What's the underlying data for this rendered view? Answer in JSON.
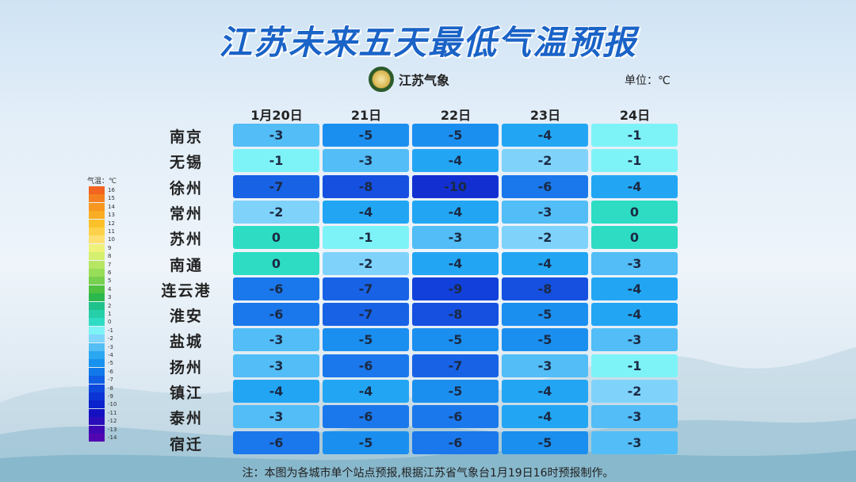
{
  "title": "江苏未来五天最低气温预报",
  "logo_text": "江苏气象",
  "unit_label": "单位：℃",
  "footnote": "注：本图为各城市单个站点预报,根据江苏省气象台1月19日16时预报制作。",
  "legend": {
    "title": "气温：℃",
    "ticks": [
      "16",
      "15",
      "14",
      "13",
      "12",
      "11",
      "10",
      "9",
      "8",
      "7",
      "6",
      "5",
      "4",
      "3",
      "2",
      "1",
      "0",
      "-1",
      "-2",
      "-3",
      "-4",
      "-5",
      "-6",
      "-7",
      "-8",
      "-9",
      "-10",
      "-11",
      "-12",
      "-13",
      "-14"
    ],
    "colors": [
      "#f2641f",
      "#f5801f",
      "#f7971f",
      "#f9ad22",
      "#fbc12a",
      "#fdd24a",
      "#fde070",
      "#eff27a",
      "#d5ef6e",
      "#b6e663",
      "#98dd58",
      "#77d14e",
      "#4fc140",
      "#2bb84d",
      "#1fc28a",
      "#25cfa8",
      "#2edcc4",
      "#7ef3f7",
      "#7fd5fb",
      "#54bef5",
      "#2aa8f2",
      "#1792ee",
      "#1178ea",
      "#0f5ee4",
      "#0d48dd",
      "#0b34d5",
      "#0a22cb",
      "#1410c2",
      "#2a0cba",
      "#3e08b5",
      "#5206b2"
    ]
  },
  "chart_data": {
    "type": "table",
    "title": "江苏未来五天最低气温预报",
    "unit": "℃",
    "days": [
      "1月20日",
      "21日",
      "22日",
      "23日",
      "24日"
    ],
    "cities": [
      "南京",
      "无锡",
      "徐州",
      "常州",
      "苏州",
      "南通",
      "连云港",
      "淮安",
      "盐城",
      "扬州",
      "镇江",
      "泰州",
      "宿迁"
    ],
    "values": [
      [
        -3,
        -5,
        -5,
        -4,
        -1
      ],
      [
        -1,
        -3,
        -4,
        -2,
        -1
      ],
      [
        -7,
        -8,
        -10,
        -6,
        -4
      ],
      [
        -2,
        -4,
        -4,
        -3,
        0
      ],
      [
        0,
        -1,
        -3,
        -2,
        0
      ],
      [
        0,
        -2,
        -4,
        -4,
        -3
      ],
      [
        -6,
        -7,
        -9,
        -8,
        -4
      ],
      [
        -6,
        -7,
        -8,
        -5,
        -4
      ],
      [
        -3,
        -5,
        -5,
        -5,
        -3
      ],
      [
        -3,
        -6,
        -7,
        -3,
        -1
      ],
      [
        -4,
        -4,
        -5,
        -4,
        -2
      ],
      [
        -3,
        -6,
        -6,
        -4,
        -3
      ],
      [
        -6,
        -5,
        -6,
        -5,
        -3
      ]
    ],
    "color_scale": {
      "0": "#2edcc4",
      "-1": "#7ef3f7",
      "-2": "#7fd3fb",
      "-3": "#52bdf6",
      "-4": "#22a6f4",
      "-5": "#1a8ff0",
      "-6": "#1a78ec",
      "-7": "#1862e6",
      "-8": "#1550e0",
      "-9": "#1240da",
      "-10": "#1230d2"
    }
  }
}
